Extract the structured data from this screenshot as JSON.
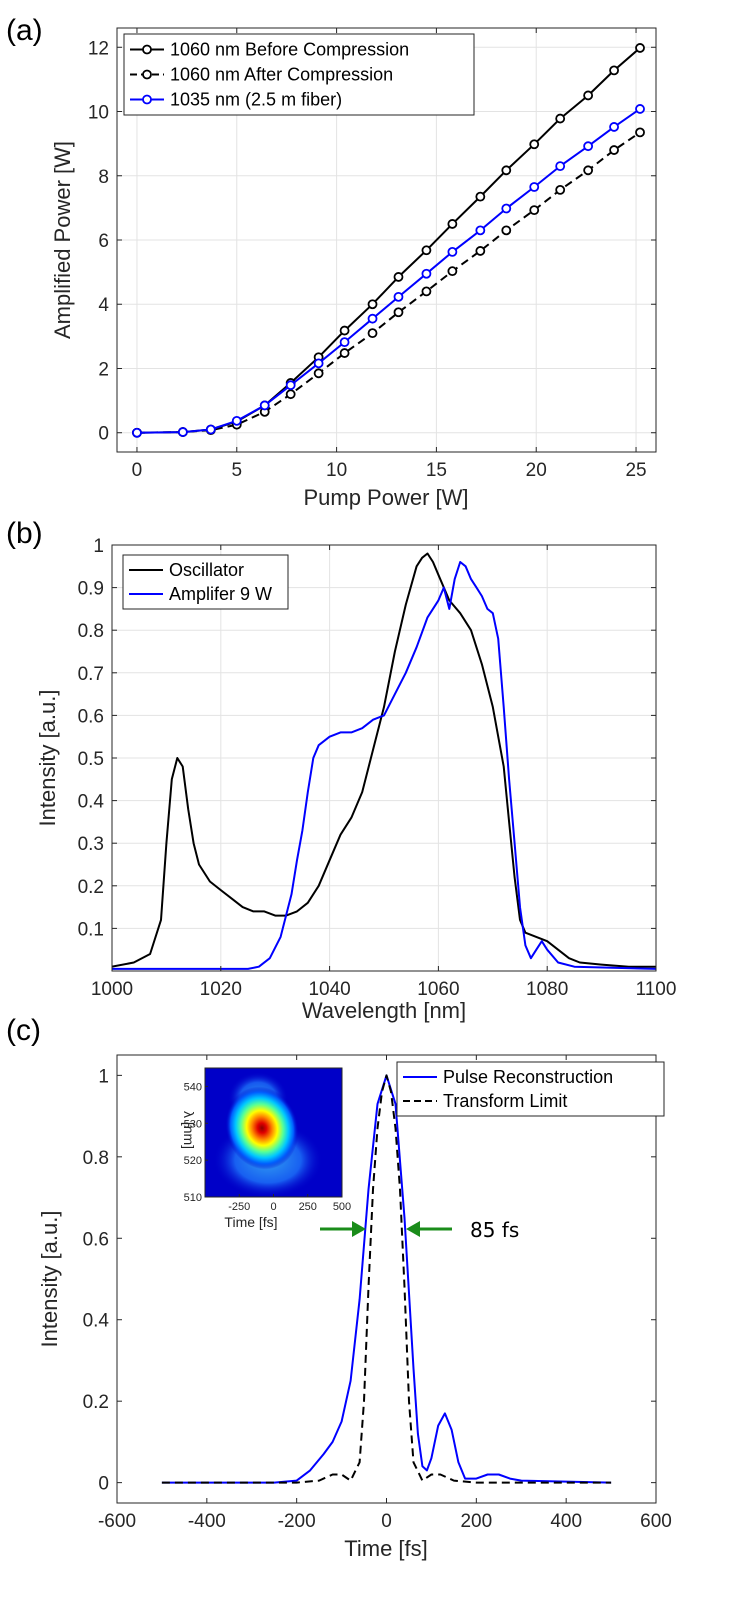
{
  "chart_data": [
    {
      "panel_label": "(a)",
      "type": "line",
      "xlabel": "Pump Power [W]",
      "ylabel": "Amplified Power [W]",
      "xlim": [
        -1,
        26
      ],
      "ylim": [
        -0.6,
        12.6
      ],
      "xticks": [
        0,
        5,
        10,
        15,
        20,
        25
      ],
      "yticks": [
        0,
        2,
        4,
        6,
        8,
        10,
        12
      ],
      "grid": true,
      "legend": "top-left",
      "series": [
        {
          "name": "1060 nm Before Compression",
          "color": "#000000",
          "dash": "solid",
          "x": [
            0,
            2.3,
            3.7,
            5.0,
            6.4,
            7.7,
            9.1,
            10.4,
            11.8,
            13.1,
            14.5,
            15.8,
            17.2,
            18.5,
            19.9,
            21.2,
            22.6,
            23.9,
            25.2
          ],
          "y": [
            0,
            0.02,
            0.1,
            0.35,
            0.85,
            1.55,
            2.35,
            3.18,
            4.0,
            4.85,
            5.68,
            6.5,
            7.35,
            8.17,
            8.98,
            9.78,
            10.5,
            11.28,
            11.98
          ]
        },
        {
          "name": "1060 nm After Compression",
          "color": "#000000",
          "dash": "dashed",
          "x": [
            0,
            2.3,
            3.7,
            5.0,
            6.4,
            7.7,
            9.1,
            10.4,
            11.8,
            13.1,
            14.5,
            15.8,
            17.2,
            18.5,
            19.9,
            21.2,
            22.6,
            23.9,
            25.2
          ],
          "y": [
            0,
            0.02,
            0.08,
            0.25,
            0.65,
            1.2,
            1.85,
            2.48,
            3.1,
            3.75,
            4.4,
            5.03,
            5.66,
            6.3,
            6.93,
            7.56,
            8.17,
            8.8,
            9.35
          ]
        },
        {
          "name": "1035 nm (2.5 m fiber)",
          "color": "#0000ff",
          "dash": "solid",
          "x": [
            0,
            2.3,
            3.7,
            5.0,
            6.4,
            7.7,
            9.1,
            10.4,
            11.8,
            13.1,
            14.5,
            15.8,
            17.2,
            18.5,
            19.9,
            21.2,
            22.6,
            23.9,
            25.2
          ],
          "y": [
            0,
            0.02,
            0.1,
            0.37,
            0.85,
            1.48,
            2.16,
            2.82,
            3.55,
            4.23,
            4.95,
            5.63,
            6.3,
            6.98,
            7.65,
            8.3,
            8.92,
            9.52,
            10.08
          ]
        }
      ]
    },
    {
      "panel_label": "(b)",
      "type": "line",
      "xlabel": "Wavelength [nm]",
      "ylabel": "Intensity [a.u.]",
      "xlim": [
        1000,
        1100
      ],
      "ylim": [
        0,
        1
      ],
      "xticks": [
        1000,
        1020,
        1040,
        1060,
        1080,
        1100
      ],
      "yticks": [
        0.1,
        0.2,
        0.3,
        0.4,
        0.5,
        0.6,
        0.7,
        0.8,
        0.9,
        1
      ],
      "grid": true,
      "legend": "top-left",
      "series": [
        {
          "name": "Oscillator",
          "color": "#000000",
          "x": [
            1000,
            1004,
            1007,
            1009,
            1010,
            1011,
            1012,
            1013,
            1014,
            1015,
            1016,
            1018,
            1020,
            1022,
            1024,
            1026,
            1028,
            1030,
            1032,
            1034,
            1036,
            1038,
            1040,
            1042,
            1044,
            1046,
            1048,
            1050,
            1052,
            1054,
            1056,
            1057,
            1058,
            1059,
            1060,
            1062,
            1064,
            1066,
            1068,
            1070,
            1072,
            1073,
            1074,
            1075,
            1076,
            1078,
            1080,
            1082,
            1084,
            1086,
            1090,
            1095,
            1100
          ],
          "y": [
            0.01,
            0.02,
            0.04,
            0.12,
            0.3,
            0.45,
            0.5,
            0.48,
            0.38,
            0.3,
            0.25,
            0.21,
            0.19,
            0.17,
            0.15,
            0.14,
            0.14,
            0.13,
            0.13,
            0.14,
            0.16,
            0.2,
            0.26,
            0.32,
            0.36,
            0.42,
            0.52,
            0.62,
            0.75,
            0.86,
            0.95,
            0.97,
            0.98,
            0.96,
            0.93,
            0.87,
            0.84,
            0.8,
            0.72,
            0.62,
            0.48,
            0.35,
            0.22,
            0.12,
            0.09,
            0.08,
            0.07,
            0.05,
            0.03,
            0.02,
            0.015,
            0.01,
            0.01
          ]
        },
        {
          "name": "Amplifer 9 W",
          "color": "#0000ff",
          "x": [
            1000,
            1020,
            1025,
            1027,
            1029,
            1031,
            1033,
            1034,
            1035,
            1036,
            1037,
            1038,
            1040,
            1042,
            1044,
            1046,
            1048,
            1050,
            1052,
            1054,
            1056,
            1058,
            1060,
            1061,
            1062,
            1063,
            1064,
            1065,
            1066,
            1067,
            1068,
            1069,
            1070,
            1071,
            1072,
            1073,
            1074,
            1075,
            1076,
            1077,
            1078,
            1079,
            1080,
            1082,
            1085,
            1100
          ],
          "y": [
            0.005,
            0.005,
            0.005,
            0.01,
            0.03,
            0.08,
            0.18,
            0.26,
            0.33,
            0.42,
            0.5,
            0.53,
            0.55,
            0.56,
            0.56,
            0.57,
            0.59,
            0.6,
            0.65,
            0.7,
            0.76,
            0.83,
            0.87,
            0.9,
            0.85,
            0.92,
            0.96,
            0.95,
            0.92,
            0.9,
            0.88,
            0.85,
            0.84,
            0.78,
            0.62,
            0.45,
            0.3,
            0.15,
            0.06,
            0.03,
            0.05,
            0.07,
            0.05,
            0.02,
            0.01,
            0.005
          ]
        }
      ]
    },
    {
      "panel_label": "(c)",
      "type": "line",
      "xlabel": "Time [fs]",
      "ylabel": "Intensity [a.u.]",
      "xlim": [
        -600,
        600
      ],
      "ylim": [
        -0.05,
        1.05
      ],
      "xticks": [
        -600,
        -400,
        -200,
        0,
        200,
        400,
        600
      ],
      "yticks": [
        0,
        0.2,
        0.4,
        0.6,
        0.8,
        1
      ],
      "grid": false,
      "legend": "top-right",
      "annotation": "85 fs",
      "series": [
        {
          "name": "Pulse Reconstruction",
          "color": "#0000ff",
          "dash": "solid",
          "x": [
            -500,
            -250,
            -200,
            -170,
            -140,
            -120,
            -100,
            -80,
            -60,
            -40,
            -20,
            0,
            20,
            40,
            60,
            70,
            80,
            90,
            100,
            115,
            130,
            145,
            160,
            175,
            200,
            225,
            250,
            275,
            300,
            500
          ],
          "y": [
            0,
            0,
            0.005,
            0.03,
            0.07,
            0.1,
            0.15,
            0.25,
            0.45,
            0.72,
            0.93,
            1.0,
            0.93,
            0.65,
            0.28,
            0.12,
            0.04,
            0.03,
            0.06,
            0.14,
            0.17,
            0.13,
            0.05,
            0.01,
            0.01,
            0.02,
            0.02,
            0.01,
            0.005,
            0
          ]
        },
        {
          "name": "Transform Limit",
          "color": "#000000",
          "dash": "dashed",
          "x": [
            -500,
            -200,
            -150,
            -120,
            -100,
            -80,
            -60,
            -50,
            -40,
            -30,
            -20,
            -10,
            0,
            10,
            20,
            30,
            40,
            50,
            60,
            80,
            100,
            120,
            150,
            200,
            500
          ],
          "y": [
            0,
            0,
            0.005,
            0.02,
            0.02,
            0.005,
            0.05,
            0.2,
            0.48,
            0.72,
            0.87,
            0.96,
            1.0,
            0.96,
            0.87,
            0.72,
            0.48,
            0.2,
            0.05,
            0.005,
            0.02,
            0.02,
            0.005,
            0,
            0
          ]
        }
      ],
      "inset": {
        "type": "heatmap",
        "xlabel": "Time [fs]",
        "ylabel": "λ [nm]",
        "xlim": [
          -500,
          500
        ],
        "ylim": [
          510,
          545
        ],
        "xticks": [
          -250,
          0,
          250,
          500
        ],
        "yticks": [
          510,
          520,
          530,
          540
        ],
        "peak": {
          "x": 30,
          "y": 529
        },
        "colormap": "jet"
      }
    }
  ]
}
